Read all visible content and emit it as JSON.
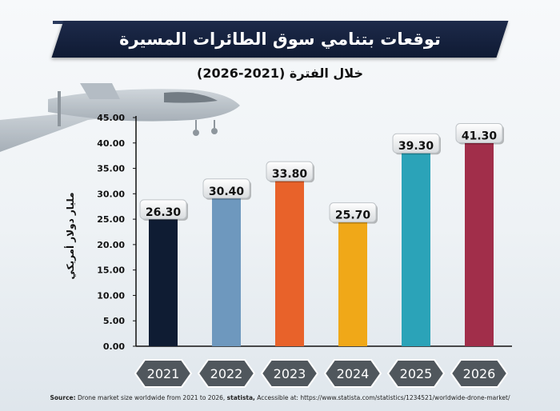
{
  "title": "توقعات بتنامي سوق الطائرات المسيرة",
  "subtitle": "خلال الفترة (2021-2026)",
  "source": {
    "label": "Source:",
    "text": "Drone market size worldwide from 2021 to 2026,",
    "brand": "statista,",
    "accessed": "Accessible at: https://www.statista.com/statistics/1234521/worldwide-drone-market/"
  },
  "chart_data": {
    "type": "bar",
    "title": "توقعات بتنامي سوق الطائرات المسيرة",
    "subtitle": "خلال الفترة (2021-2026)",
    "xlabel": "",
    "ylabel": "مليار دولار أمريكي",
    "ylim": [
      0,
      45
    ],
    "yticks": [
      "0.00",
      "5.00",
      "10.00",
      "15.00",
      "20.00",
      "25.00",
      "30.00",
      "35.00",
      "40.00",
      "45.00"
    ],
    "categories": [
      "2021",
      "2022",
      "2023",
      "2024",
      "2025",
      "2026"
    ],
    "values": [
      26.3,
      30.4,
      33.8,
      25.7,
      39.3,
      41.3
    ],
    "value_labels": [
      "26.30",
      "30.40",
      "33.80",
      "25.70",
      "39.30",
      "41.30"
    ],
    "colors": [
      "#0f1c33",
      "#6e98be",
      "#e8622a",
      "#f0a818",
      "#2ba3b8",
      "#a12e4a"
    ],
    "grid": false,
    "legend": "none"
  },
  "colors": {
    "title_band": "#142241",
    "category_tag": "#50575d",
    "value_tag": "#f2f2f2"
  }
}
